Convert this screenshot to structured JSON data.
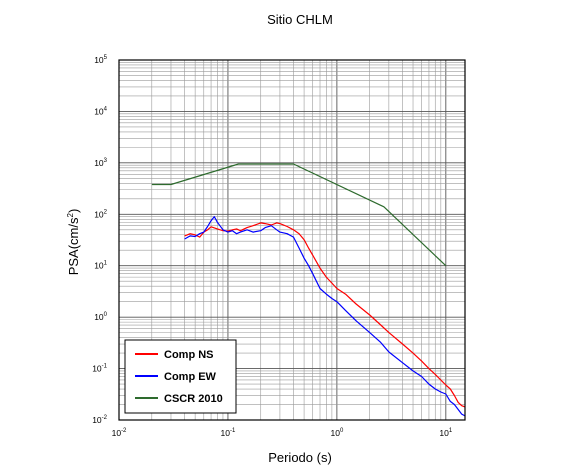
{
  "chart_data": {
    "type": "line",
    "title": "Sitio CHLM",
    "xlabel": "Periodo (s)",
    "ylabel": {
      "base": "PSA(cm/s",
      "sup": "2",
      "close": ")"
    },
    "xscale": "log",
    "yscale": "log",
    "xlim": [
      0.01,
      15
    ],
    "ylim": [
      0.01,
      100000
    ],
    "grid": true,
    "legend_position": "bottom-left",
    "x_ticks": [
      {
        "base": "10",
        "exp": "-2",
        "value": 0.01
      },
      {
        "base": "10",
        "exp": "-1",
        "value": 0.1
      },
      {
        "base": "10",
        "exp": "0",
        "value": 1
      },
      {
        "base": "10",
        "exp": "1",
        "value": 10
      }
    ],
    "y_ticks": [
      {
        "base": "10",
        "exp": "-2",
        "value": 0.01
      },
      {
        "base": "10",
        "exp": "-1",
        "value": 0.1
      },
      {
        "base": "10",
        "exp": "0",
        "value": 1
      },
      {
        "base": "10",
        "exp": "1",
        "value": 10
      },
      {
        "base": "10",
        "exp": "2",
        "value": 100
      },
      {
        "base": "10",
        "exp": "3",
        "value": 1000
      },
      {
        "base": "10",
        "exp": "4",
        "value": 10000
      },
      {
        "base": "10",
        "exp": "5",
        "value": 100000
      }
    ],
    "series": [
      {
        "name": "Comp NS",
        "color": "#ff0000",
        "points": [
          [
            0.04,
            38
          ],
          [
            0.045,
            42
          ],
          [
            0.05,
            40
          ],
          [
            0.055,
            36
          ],
          [
            0.06,
            45
          ],
          [
            0.065,
            50
          ],
          [
            0.07,
            57
          ],
          [
            0.08,
            52
          ],
          [
            0.09,
            48
          ],
          [
            0.1,
            47
          ],
          [
            0.11,
            50
          ],
          [
            0.12,
            52
          ],
          [
            0.13,
            48
          ],
          [
            0.15,
            55
          ],
          [
            0.17,
            60
          ],
          [
            0.2,
            68
          ],
          [
            0.22,
            66
          ],
          [
            0.25,
            62
          ],
          [
            0.28,
            68
          ],
          [
            0.3,
            66
          ],
          [
            0.35,
            58
          ],
          [
            0.4,
            50
          ],
          [
            0.45,
            42
          ],
          [
            0.5,
            32
          ],
          [
            0.55,
            22
          ],
          [
            0.6,
            16
          ],
          [
            0.7,
            9
          ],
          [
            0.8,
            6
          ],
          [
            0.9,
            4.6
          ],
          [
            1.0,
            3.6
          ],
          [
            1.2,
            2.8
          ],
          [
            1.5,
            1.8
          ],
          [
            2.0,
            1.1
          ],
          [
            2.5,
            0.72
          ],
          [
            3.0,
            0.5
          ],
          [
            4.0,
            0.3
          ],
          [
            5.0,
            0.2
          ],
          [
            6.0,
            0.14
          ],
          [
            7.0,
            0.1
          ],
          [
            8.0,
            0.077
          ],
          [
            9.0,
            0.06
          ],
          [
            10.0,
            0.048
          ],
          [
            11.0,
            0.04
          ],
          [
            12.0,
            0.03
          ],
          [
            13.0,
            0.022
          ],
          [
            14.0,
            0.019
          ],
          [
            15.0,
            0.018
          ]
        ]
      },
      {
        "name": "Comp EW",
        "color": "#0000ff",
        "points": [
          [
            0.04,
            33
          ],
          [
            0.045,
            38
          ],
          [
            0.05,
            37
          ],
          [
            0.055,
            42
          ],
          [
            0.06,
            45
          ],
          [
            0.065,
            58
          ],
          [
            0.07,
            75
          ],
          [
            0.075,
            90
          ],
          [
            0.08,
            70
          ],
          [
            0.09,
            50
          ],
          [
            0.1,
            45
          ],
          [
            0.11,
            48
          ],
          [
            0.12,
            42
          ],
          [
            0.13,
            45
          ],
          [
            0.15,
            50
          ],
          [
            0.17,
            45
          ],
          [
            0.2,
            48
          ],
          [
            0.22,
            55
          ],
          [
            0.25,
            60
          ],
          [
            0.28,
            50
          ],
          [
            0.3,
            45
          ],
          [
            0.35,
            42
          ],
          [
            0.4,
            36
          ],
          [
            0.45,
            22
          ],
          [
            0.5,
            14
          ],
          [
            0.55,
            10
          ],
          [
            0.6,
            7
          ],
          [
            0.7,
            3.6
          ],
          [
            0.8,
            2.8
          ],
          [
            0.9,
            2.3
          ],
          [
            1.0,
            2.0
          ],
          [
            1.2,
            1.35
          ],
          [
            1.5,
            0.85
          ],
          [
            2.0,
            0.5
          ],
          [
            2.5,
            0.33
          ],
          [
            3.0,
            0.21
          ],
          [
            4.0,
            0.13
          ],
          [
            5.0,
            0.09
          ],
          [
            6.0,
            0.07
          ],
          [
            7.0,
            0.05
          ],
          [
            8.0,
            0.04
          ],
          [
            9.0,
            0.035
          ],
          [
            10.0,
            0.032
          ],
          [
            11.0,
            0.023
          ],
          [
            12.0,
            0.02
          ],
          [
            13.0,
            0.016
          ],
          [
            14.0,
            0.013
          ],
          [
            15.0,
            0.012
          ]
        ]
      },
      {
        "name": "CSCR 2010",
        "color": "#2e6b2e",
        "points": [
          [
            0.02,
            380
          ],
          [
            0.03,
            380
          ],
          [
            0.125,
            950
          ],
          [
            0.4,
            950
          ],
          [
            2.7,
            140
          ],
          [
            10.0,
            10
          ]
        ]
      }
    ]
  }
}
